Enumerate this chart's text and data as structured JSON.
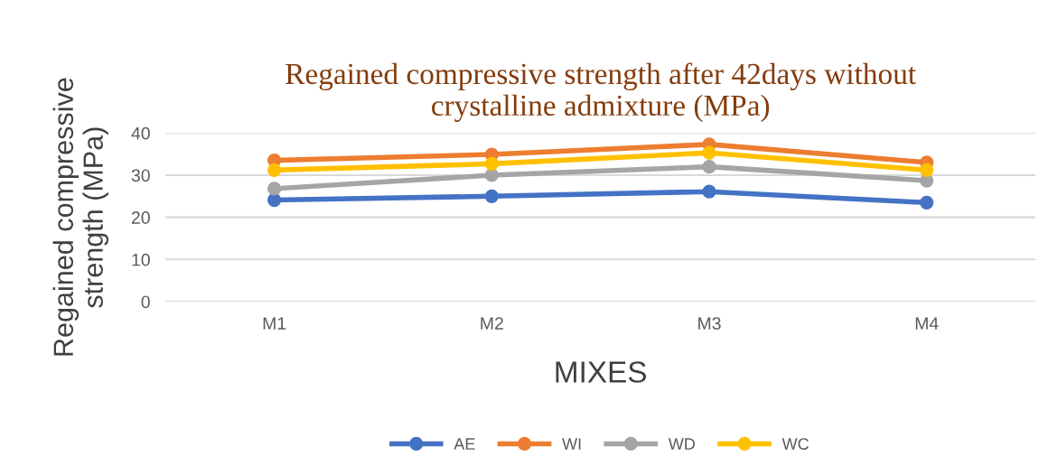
{
  "chart_data": {
    "type": "line",
    "title": "Regained compressive strength after 42days without\ncrystalline admixture (MPa)",
    "xlabel": "MIXES",
    "ylabel": "Regained compressive\nstrength (MPa)",
    "categories": [
      "M1",
      "M2",
      "M3",
      "M4"
    ],
    "series": [
      {
        "name": "AE",
        "color": "#4472c4",
        "values": [
          24.1,
          25.0,
          26.1,
          23.5
        ]
      },
      {
        "name": "WI",
        "color": "#ed7d31",
        "values": [
          33.5,
          34.9,
          37.3,
          33.0
        ]
      },
      {
        "name": "WD",
        "color": "#a5a5a5",
        "values": [
          26.8,
          30.0,
          32.0,
          28.7
        ]
      },
      {
        "name": "WC",
        "color": "#ffc000",
        "values": [
          31.2,
          32.7,
          35.3,
          31.2
        ]
      }
    ],
    "ylim": [
      0,
      40
    ],
    "yticks": [
      0,
      10,
      20,
      30,
      40
    ],
    "grid": "y",
    "legend": "bottom",
    "marker": "circle",
    "line_style": "solid"
  }
}
